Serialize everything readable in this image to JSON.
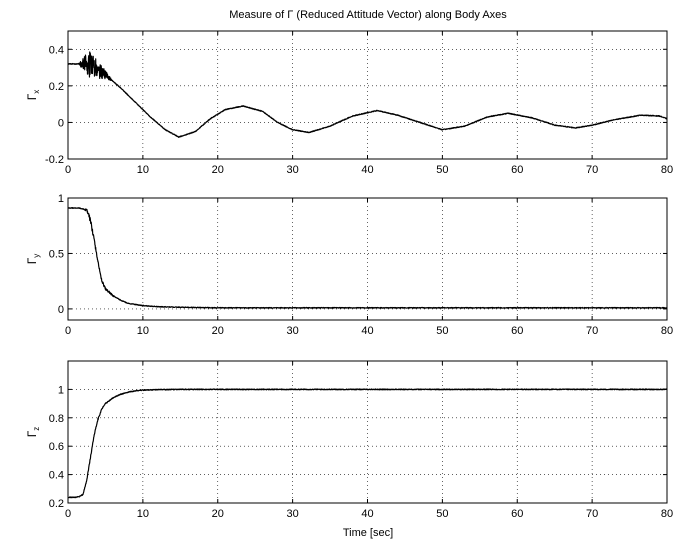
{
  "figure": {
    "title_parts": [
      "Measure of ",
      "Γ",
      " (Reduced Attitude Vector) along Body Axes"
    ],
    "xlabel": "Time [sec]"
  },
  "chart_data": [
    {
      "type": "line",
      "ylabel_symbol": "Γ",
      "ylabel_sub": "x",
      "xlim": [
        0,
        80
      ],
      "ylim": [
        -0.2,
        0.5
      ],
      "xticks": [
        0,
        10,
        20,
        30,
        40,
        50,
        60,
        70,
        80
      ],
      "yticks": [
        -0.2,
        0,
        0.2,
        0.4
      ],
      "grid": true,
      "series": [
        {
          "color": "#000000",
          "noise": {
            "from": 1.4,
            "to": 6.0,
            "peak_amp": 0.075,
            "peak_at": 2.8
          },
          "x": [
            0,
            1.5,
            2.5,
            3.5,
            5,
            7,
            9,
            11,
            13,
            14.8,
            17,
            19,
            21,
            23.4,
            26,
            28,
            30,
            32.2,
            35,
            38,
            41.3,
            44,
            47,
            50,
            53,
            56,
            58.8,
            62,
            65,
            67.8,
            70,
            73,
            76.5,
            79,
            80
          ],
          "y": [
            0.32,
            0.32,
            0.32,
            0.3,
            0.26,
            0.19,
            0.11,
            0.03,
            -0.04,
            -0.08,
            -0.05,
            0.02,
            0.07,
            0.09,
            0.06,
            0.0,
            -0.04,
            -0.055,
            -0.02,
            0.035,
            0.065,
            0.04,
            0.0,
            -0.04,
            -0.02,
            0.03,
            0.05,
            0.025,
            -0.015,
            -0.03,
            -0.015,
            0.015,
            0.04,
            0.035,
            0.02
          ]
        }
      ]
    },
    {
      "type": "line",
      "ylabel_symbol": "Γ",
      "ylabel_sub": "y",
      "xlim": [
        0,
        80
      ],
      "ylim": [
        -0.1,
        1.0
      ],
      "xticks": [
        0,
        10,
        20,
        30,
        40,
        50,
        60,
        70,
        80
      ],
      "yticks": [
        0,
        0.5,
        1
      ],
      "grid": true,
      "series": [
        {
          "color": "#000000",
          "noise": {
            "from": 1.8,
            "to": 7.0,
            "peak_amp": 0.02,
            "peak_at": 3.0
          },
          "x": [
            0,
            1.5,
            2.5,
            3,
            3.5,
            4,
            4.5,
            5,
            6,
            7,
            8,
            10,
            12,
            15,
            20,
            30,
            80
          ],
          "y": [
            0.91,
            0.91,
            0.89,
            0.8,
            0.62,
            0.42,
            0.26,
            0.18,
            0.12,
            0.08,
            0.05,
            0.03,
            0.02,
            0.015,
            0.01,
            0.01,
            0.01
          ]
        }
      ]
    },
    {
      "type": "line",
      "ylabel_symbol": "Γ",
      "ylabel_sub": "z",
      "xlim": [
        0,
        80
      ],
      "ylim": [
        0.2,
        1.2
      ],
      "xticks": [
        0,
        10,
        20,
        30,
        40,
        50,
        60,
        70,
        80
      ],
      "yticks": [
        0.2,
        0.4,
        0.6,
        0.8,
        1
      ],
      "grid": true,
      "series": [
        {
          "color": "#000000",
          "noise": {
            "from": 1.8,
            "to": 6.0,
            "peak_amp": 0.006,
            "peak_at": 3.0
          },
          "x": [
            0,
            1,
            1.5,
            2,
            2.5,
            3,
            3.5,
            4,
            4.5,
            5,
            6,
            7,
            8,
            9,
            10,
            12,
            15,
            20,
            80
          ],
          "y": [
            0.24,
            0.24,
            0.245,
            0.26,
            0.36,
            0.52,
            0.68,
            0.79,
            0.86,
            0.9,
            0.94,
            0.965,
            0.98,
            0.99,
            0.995,
            0.998,
            1.0,
            1.0,
            1.0
          ]
        }
      ]
    }
  ]
}
